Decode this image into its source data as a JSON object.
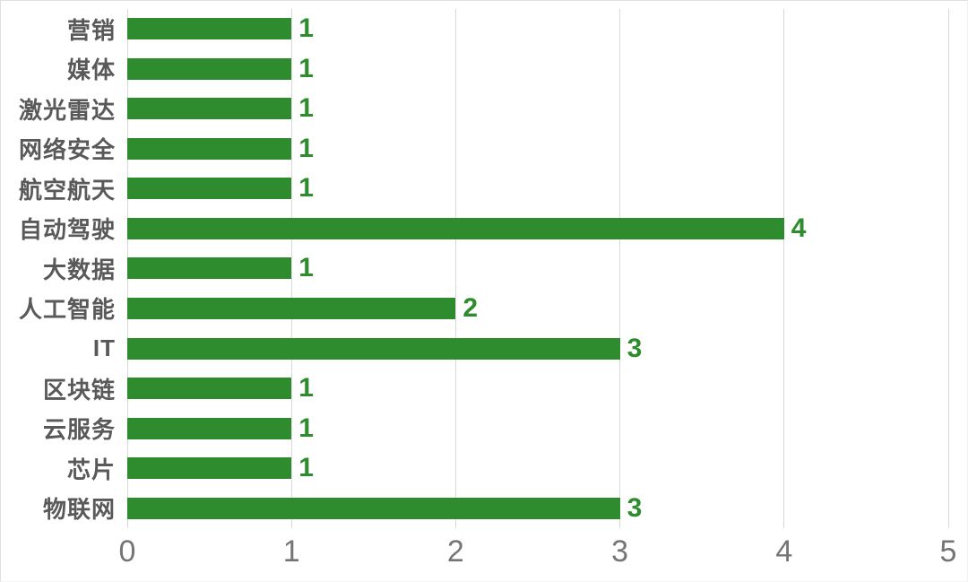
{
  "chart_data": {
    "type": "bar",
    "orientation": "horizontal",
    "categories": [
      "营销",
      "媒体",
      "激光雷达",
      "网络安全",
      "航空航天",
      "自动驾驶",
      "大数据",
      "人工智能",
      "IT",
      "区块链",
      "云服务",
      "芯片",
      "物联网"
    ],
    "values": [
      1,
      1,
      1,
      1,
      1,
      4,
      1,
      2,
      3,
      1,
      1,
      1,
      3
    ],
    "value_labels": [
      "1",
      "1",
      "1",
      "1",
      "1",
      "4",
      "1",
      "2",
      "3",
      "1",
      "1",
      "1",
      "3"
    ],
    "xlim": [
      0,
      5
    ],
    "x_ticks": [
      "0",
      "1",
      "2",
      "3",
      "4",
      "5"
    ],
    "grid": true,
    "legend": false,
    "title": "",
    "xlabel": "",
    "ylabel": "",
    "colors": {
      "bar": "#2E8B2E",
      "value_label": "#2E8B2E",
      "category_label": "#595959",
      "tick_label": "#757575",
      "gridline": "#D9D9D9",
      "background": "#FFFFFF"
    }
  }
}
